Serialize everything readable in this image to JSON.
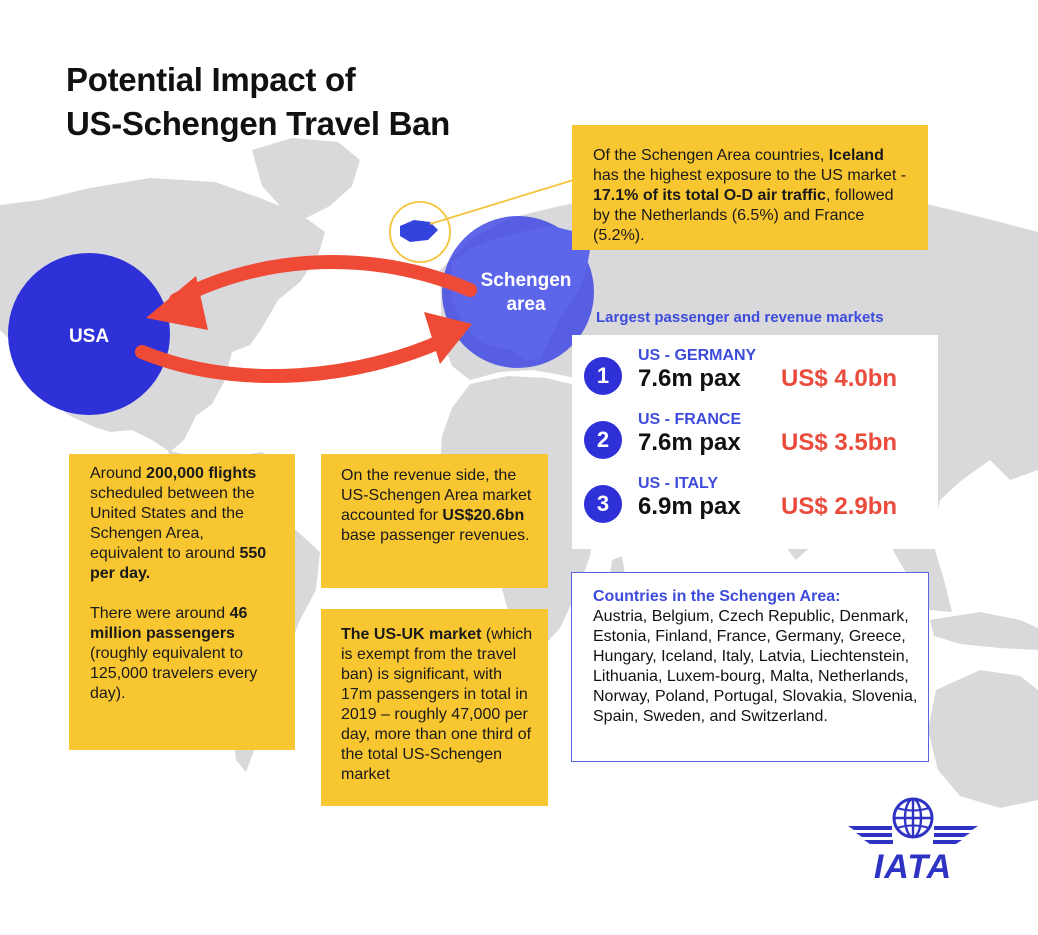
{
  "title": {
    "line1": "Potential Impact of",
    "line2": "US-Schengen Travel Ban"
  },
  "map": {
    "usa_label": "USA",
    "schengen_label_line1": "Schengen",
    "schengen_label_line2": "area"
  },
  "iceland_note": {
    "part1": "Of the Schengen Area countries,",
    "bold1": "Iceland",
    "part2": " has the highest exposure to the US market - ",
    "bold2": "17.1% of its total O-D air traffic",
    "part3": ", followed by the Netherlands (6.5%) and France (5.2%)."
  },
  "flights_note": {
    "p1_part1": "Around ",
    "p1_bold1": "200,000 flights",
    "p1_part2": " scheduled between the United States and the Schengen Area, equivalent to around ",
    "p1_bold2": "550 per day.",
    "p2_part1": "There were around ",
    "p2_bold1": "46 million passengers",
    "p2_part2": " (roughly equivalent to 125,000 travelers every day)."
  },
  "revenue_note": {
    "part1": "On the revenue side, the US-Schengen Area market accounted for ",
    "bold1": "US$20.6bn",
    "part2": " base passenger revenues."
  },
  "uk_note": {
    "bold1": "The US-UK market",
    "part1": " (which is exempt from the travel ban) is significant, with 17m passengers in total in 2019 – roughly 47,000 per day, more than one third of the total US-Schengen market"
  },
  "markets": {
    "title": "Largest passenger and revenue markets",
    "items": [
      {
        "rank": "1",
        "route": "US - GERMANY",
        "pax": "7.6m pax",
        "revenue": "US$ 4.0bn"
      },
      {
        "rank": "2",
        "route": "US - FRANCE",
        "pax": "7.6m pax",
        "revenue": "US$ 3.5bn"
      },
      {
        "rank": "3",
        "route": "US - ITALY",
        "pax": "6.9m pax",
        "revenue": "US$ 2.9bn"
      }
    ]
  },
  "countries": {
    "title": "Countries in the Schengen Area:",
    "text": "Austria, Belgium, Czech Republic, Denmark, Estonia, Finland, France, Germany, Greece, Hungary, Iceland, Italy, Latvia, Liechtenstein, Lithuania, Luxem-bourg, Malta, Netherlands, Norway, Poland, Portugal, Slovakia, Slovenia, Spain, Sweden, and Switzerland."
  },
  "logo": {
    "text": "IATA",
    "icon": "iata-globe-wings-icon"
  },
  "colors": {
    "accent_blue": "#2f31d8",
    "label_blue": "#3d4bdc",
    "arrow_red": "#ef4a36",
    "note_yellow": "#f8c631",
    "map_gray": "#d9d9db"
  }
}
